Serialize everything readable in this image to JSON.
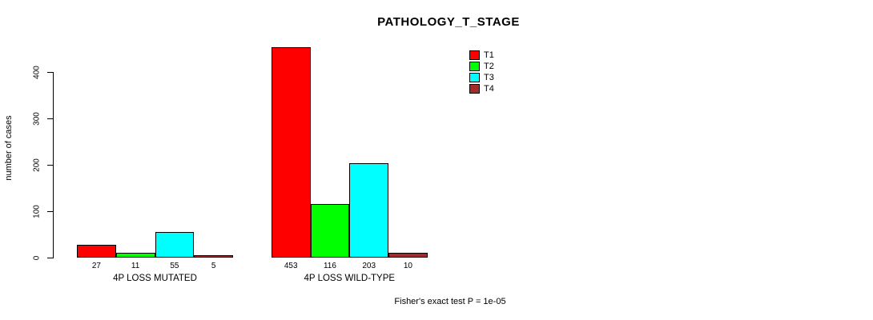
{
  "chart_data": {
    "type": "bar",
    "title": "PATHOLOGY_T_STAGE",
    "xlabel": "",
    "ylabel": "number of cases",
    "ylim": [
      0,
      460
    ],
    "yticks": [
      0,
      100,
      200,
      300,
      400
    ],
    "grid": false,
    "legend_position": "top-right",
    "categories": [
      "4P LOSS MUTATED",
      "4P LOSS WILD-TYPE"
    ],
    "series": [
      {
        "name": "T1",
        "color": "#FF0000",
        "values": [
          27,
          453
        ]
      },
      {
        "name": "T2",
        "color": "#00FF00",
        "values": [
          11,
          116
        ]
      },
      {
        "name": "T3",
        "color": "#00FFFF",
        "values": [
          55,
          203
        ]
      },
      {
        "name": "T4",
        "color": "#A52A2A",
        "values": [
          5,
          10
        ]
      }
    ],
    "bar_value_labels": [
      [
        27,
        11,
        55,
        5
      ],
      [
        453,
        116,
        203,
        10
      ]
    ],
    "annotation": "Fisher's exact test P = 1e-05"
  }
}
